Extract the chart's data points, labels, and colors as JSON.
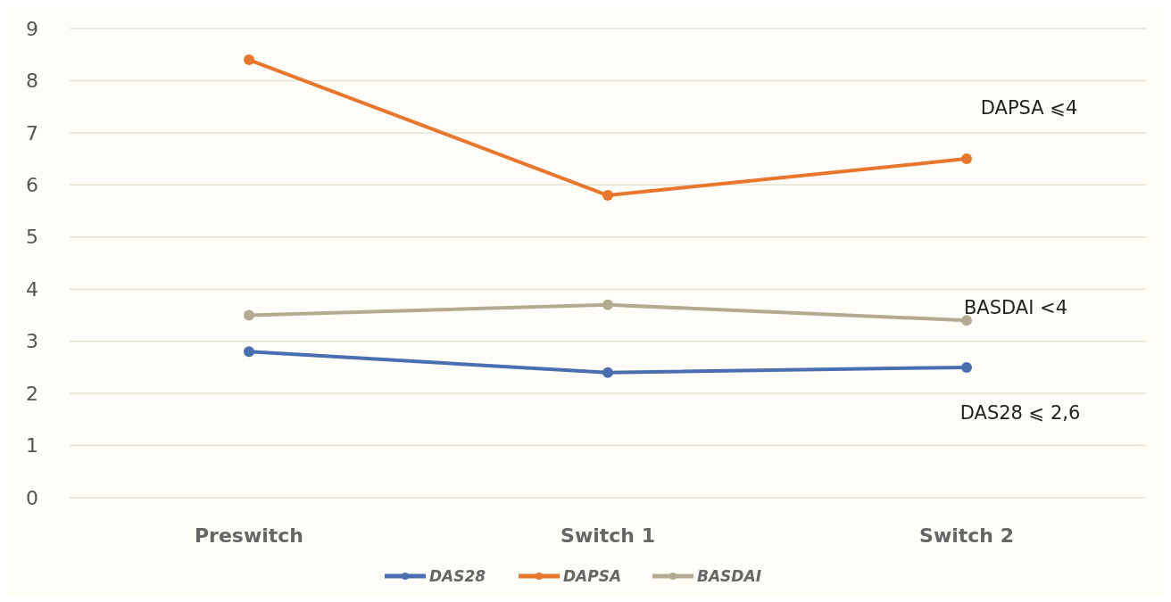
{
  "chart_data": {
    "type": "line",
    "categories": [
      "Preswitch",
      "Switch 1",
      "Switch 2"
    ],
    "series": [
      {
        "name": "DAS28",
        "color": "#4a6fb0",
        "values": [
          2.8,
          2.4,
          2.5
        ]
      },
      {
        "name": "DAPSA",
        "color": "#e8762d",
        "values": [
          8.4,
          5.8,
          6.5
        ]
      },
      {
        "name": "BASDAI",
        "color": "#b3aa92",
        "values": [
          3.5,
          3.7,
          3.4
        ]
      }
    ],
    "ylim": [
      0,
      9
    ],
    "yticks": [
      0,
      1,
      2,
      3,
      4,
      5,
      6,
      7,
      8,
      9
    ],
    "grid": "y",
    "legend": "bottom",
    "marker": "circle",
    "annotations": [
      "DAPSA ⩽4",
      "BASDAI <4",
      "DAS28 ⩽ 2,6"
    ]
  }
}
